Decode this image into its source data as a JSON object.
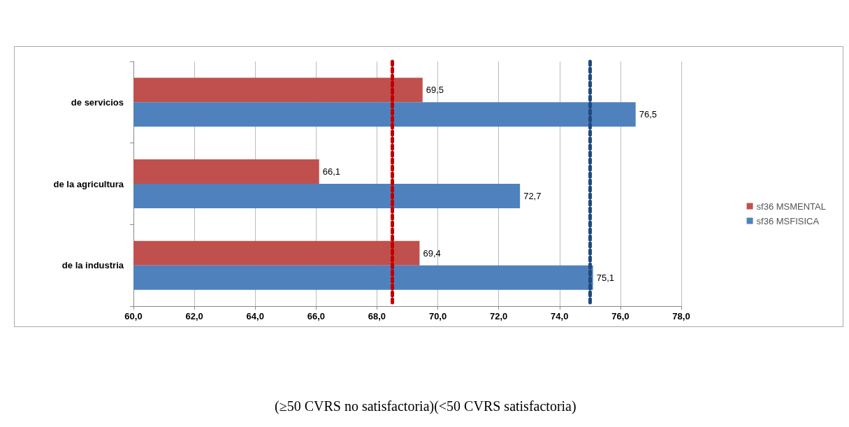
{
  "chart_data": {
    "type": "bar",
    "orientation": "horizontal",
    "categories": [
      "de servicios",
      "de la agricultura",
      "de la industria"
    ],
    "series": [
      {
        "name": "sf36 MSMENTAL",
        "color": "#c0504d",
        "values": [
          69.5,
          66.1,
          69.4
        ],
        "value_labels": [
          "69,5",
          "66,1",
          "69,4"
        ]
      },
      {
        "name": "sf36 MSFISICA",
        "color": "#4f81bd",
        "values": [
          76.5,
          72.7,
          75.1
        ],
        "value_labels": [
          "76,5",
          "72,7",
          "75,1"
        ]
      }
    ],
    "xlim": [
      60,
      78
    ],
    "xticks": [
      {
        "value": 60,
        "label": "60,0"
      },
      {
        "value": 62,
        "label": "62,0"
      },
      {
        "value": 64,
        "label": "64,0"
      },
      {
        "value": 66,
        "label": "66,0"
      },
      {
        "value": 68,
        "label": "68,0"
      },
      {
        "value": 70,
        "label": "70,0"
      },
      {
        "value": 72,
        "label": "72,0"
      },
      {
        "value": 74,
        "label": "74,0"
      },
      {
        "value": 76,
        "label": "76,0"
      },
      {
        "value": 78,
        "label": "78,0"
      }
    ],
    "grid": "x",
    "legend": "right",
    "ref_lines": [
      {
        "axis": "x",
        "value": 68.5,
        "color": "#c00000",
        "line_style": "dotted"
      },
      {
        "axis": "x",
        "value": 75,
        "color": "#1f497d",
        "line_style": "dotted"
      }
    ],
    "annotations": [
      "(≥50 CVRS no satisfactoria)(<50 CVRS satisfactoria)"
    ]
  }
}
